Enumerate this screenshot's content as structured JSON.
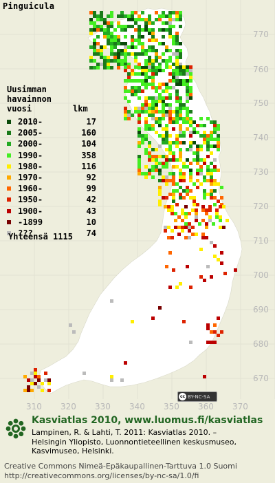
{
  "title": "Pinguicula",
  "legend": {
    "header_lines": [
      "Uusimman",
      "havainnon",
      "vuosi"
    ],
    "count_header": "lkm",
    "rows": [
      {
        "label": "2010-",
        "count": "17",
        "color": "#0a4a0a"
      },
      {
        "label": "2005-",
        "count": "160",
        "color": "#1a7a1a"
      },
      {
        "label": "2000-",
        "count": "104",
        "color": "#22aa22"
      },
      {
        "label": "1990-",
        "count": "358",
        "color": "#44ee22"
      },
      {
        "label": "1980-",
        "count": "116",
        "color": "#ffee00"
      },
      {
        "label": "1970-",
        "count": "92",
        "color": "#ffaa00"
      },
      {
        "label": "1960-",
        "count": "99",
        "color": "#ff6600"
      },
      {
        "label": "1950-",
        "count": "42",
        "color": "#dd2200"
      },
      {
        "label": "1900-",
        "count": "43",
        "color": "#bb0000"
      },
      {
        "label": "-1899",
        "count": "10",
        "color": "#770000"
      },
      {
        "label": "???",
        "count": "74",
        "color": "#bbbbbb"
      }
    ],
    "total_label": "Yhteensä",
    "total_value": "1115"
  },
  "axes": {
    "y_ticks": [
      "770",
      "760",
      "750",
      "740",
      "730",
      "720",
      "710",
      "700",
      "690",
      "680",
      "670"
    ],
    "x_ticks": [
      "310",
      "320",
      "330",
      "340",
      "350",
      "360",
      "370"
    ]
  },
  "cc_badge": {
    "icon": "cc-icon",
    "text": "BY-NC-SA"
  },
  "credits": {
    "title": "Kasviatlas 2010, www.luomus.fi/kasviatlas",
    "body": [
      "Lampinen, R. & Lahti, T. 2011: Kasviatlas 2010. –",
      "Helsingin Yliopisto, Luonnontieteellinen keskusmuseo,",
      "Kasvimuseo, Helsinki."
    ],
    "license": [
      "Creative Commons Nimeä-Epäkaupallinen-Tarttuva 1.0 Suomi",
      "http://creativecommons.org/licenses/by-nc-sa/1.0/fi"
    ]
  },
  "colors": {
    "background": "#eeeedd",
    "land": "#ffffff",
    "credit_green": "#226622"
  }
}
